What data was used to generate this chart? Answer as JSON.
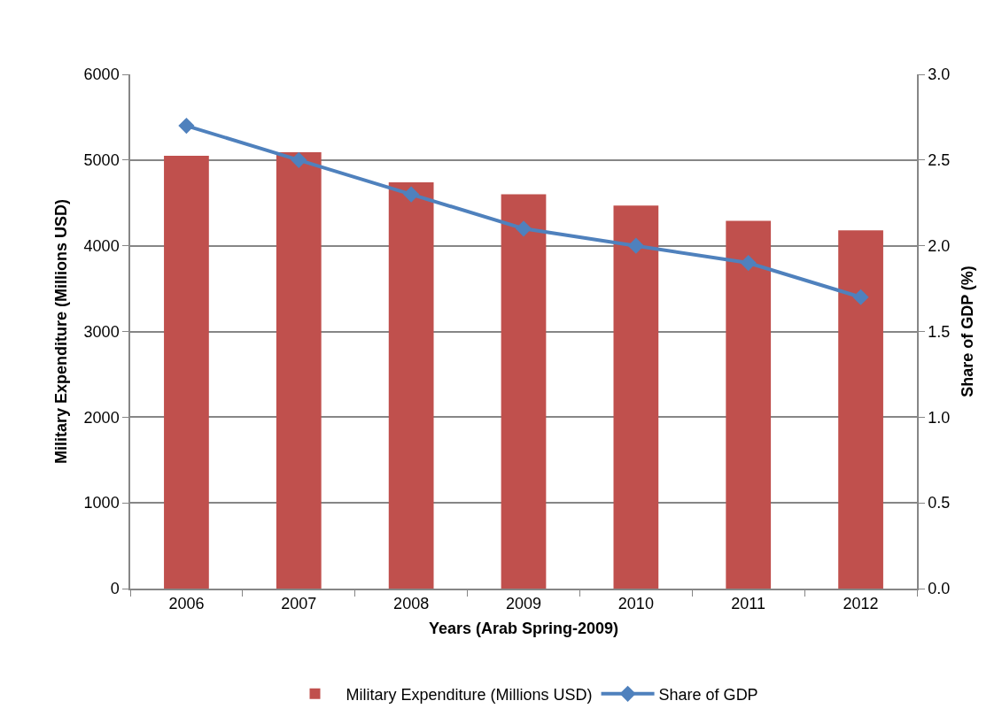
{
  "chart_data": {
    "type": "bar",
    "xlabel": "Years (Arab Spring-2009)",
    "ylabel": "Military Expenditure (Millions USD)",
    "y2label": "Share of GDP (%)",
    "categories": [
      "2006",
      "2007",
      "2008",
      "2009",
      "2010",
      "2011",
      "2012"
    ],
    "series": [
      {
        "name": "Military Expenditure (Millions USD)",
        "color": "#c0504d",
        "values": [
          5050,
          5090,
          4740,
          4600,
          4470,
          4290,
          4180
        ]
      },
      {
        "name": "Share of GDP",
        "type": "line",
        "axis": "y2",
        "color": "#4f81bd",
        "values": [
          2.7,
          2.5,
          2.3,
          2.1,
          2.0,
          1.9,
          1.7
        ]
      }
    ],
    "ylim": [
      0,
      6000
    ],
    "yticks": [
      0,
      1000,
      2000,
      3000,
      4000,
      5000,
      6000
    ],
    "y2lim": [
      0,
      3.0
    ],
    "y2ticks": [
      {
        "value": 0,
        "label": "0.0"
      },
      0.5,
      {
        "value": 1,
        "label": "1.0"
      },
      1.5,
      {
        "value": 2,
        "label": "2.0"
      },
      2.5,
      {
        "value": 3,
        "label": "3.0"
      }
    ],
    "grid": "y",
    "legend": "bottom",
    "marker": "diamond",
    "line_style": "solid"
  }
}
